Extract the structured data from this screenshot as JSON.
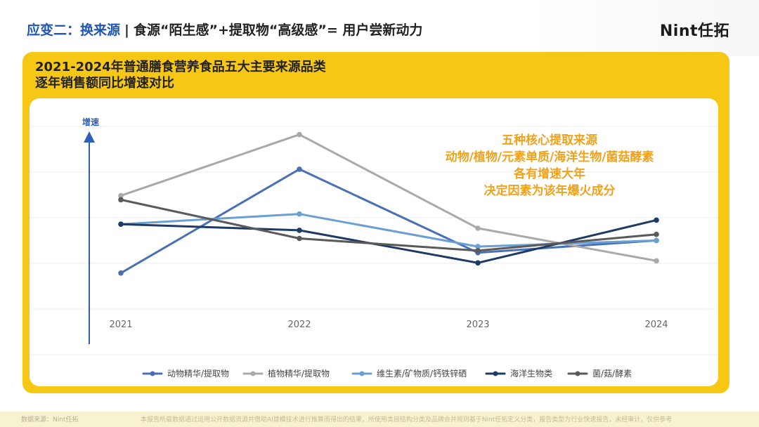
{
  "header": {
    "accent": "应变二：换来源",
    "separator": "|",
    "title": "食源“陌生感”+提取物“高级感”= 用户尝新动力"
  },
  "logo": {
    "text": "Nint任拓"
  },
  "panel": {
    "title_line1": "2021-2024年普通膳食营养食品五大主要来源品类",
    "title_line2": "逐年销售额同比增速对比"
  },
  "annotation": {
    "line1": "五种核心提取来源",
    "line2": "动物/植物/元素单质/海洋生物/菌菇酵素",
    "line3": "各有增速大年",
    "line4": "决定因素为该年爆火成分"
  },
  "footer": {
    "source": "数据来源：Nint任拓",
    "note": "本报告所载数据通过运用公开数据资源并借助AI建模技术进行推算而得出的结果，所使用类目结构分类及品牌合并规则基于Nint任拓定义分类，报告类型为行业快速报告，未经审计，仅供参考"
  },
  "chart_data": {
    "type": "line",
    "title": "2021-2024年普通膳食营养食品五大主要来源品类逐年销售额同比增速对比",
    "ylabel": "增速",
    "xlabel": "",
    "x": [
      "2021",
      "2022",
      "2023",
      "2024"
    ],
    "ylim": [
      0,
      100
    ],
    "grid": true,
    "legend": "bottom",
    "y_axis_tick_labels": false,
    "series": [
      {
        "name": "动物精华/提取物",
        "color": "#4a6fb5",
        "values": [
          28,
          79,
          38,
          44
        ]
      },
      {
        "name": "植物精华/提取物",
        "color": "#a9a9a9",
        "values": [
          66,
          96,
          50,
          34
        ]
      },
      {
        "name": "维生素/矿物质/钙铁锌硒",
        "color": "#6a9fd3",
        "values": [
          52,
          57,
          41,
          44
        ]
      },
      {
        "name": "海洋生物类",
        "color": "#1f3a64",
        "values": [
          52,
          49,
          33,
          54
        ]
      },
      {
        "name": "菌/菇/酵素",
        "color": "#5a5a5a",
        "values": [
          64,
          45,
          39,
          47
        ]
      }
    ]
  }
}
